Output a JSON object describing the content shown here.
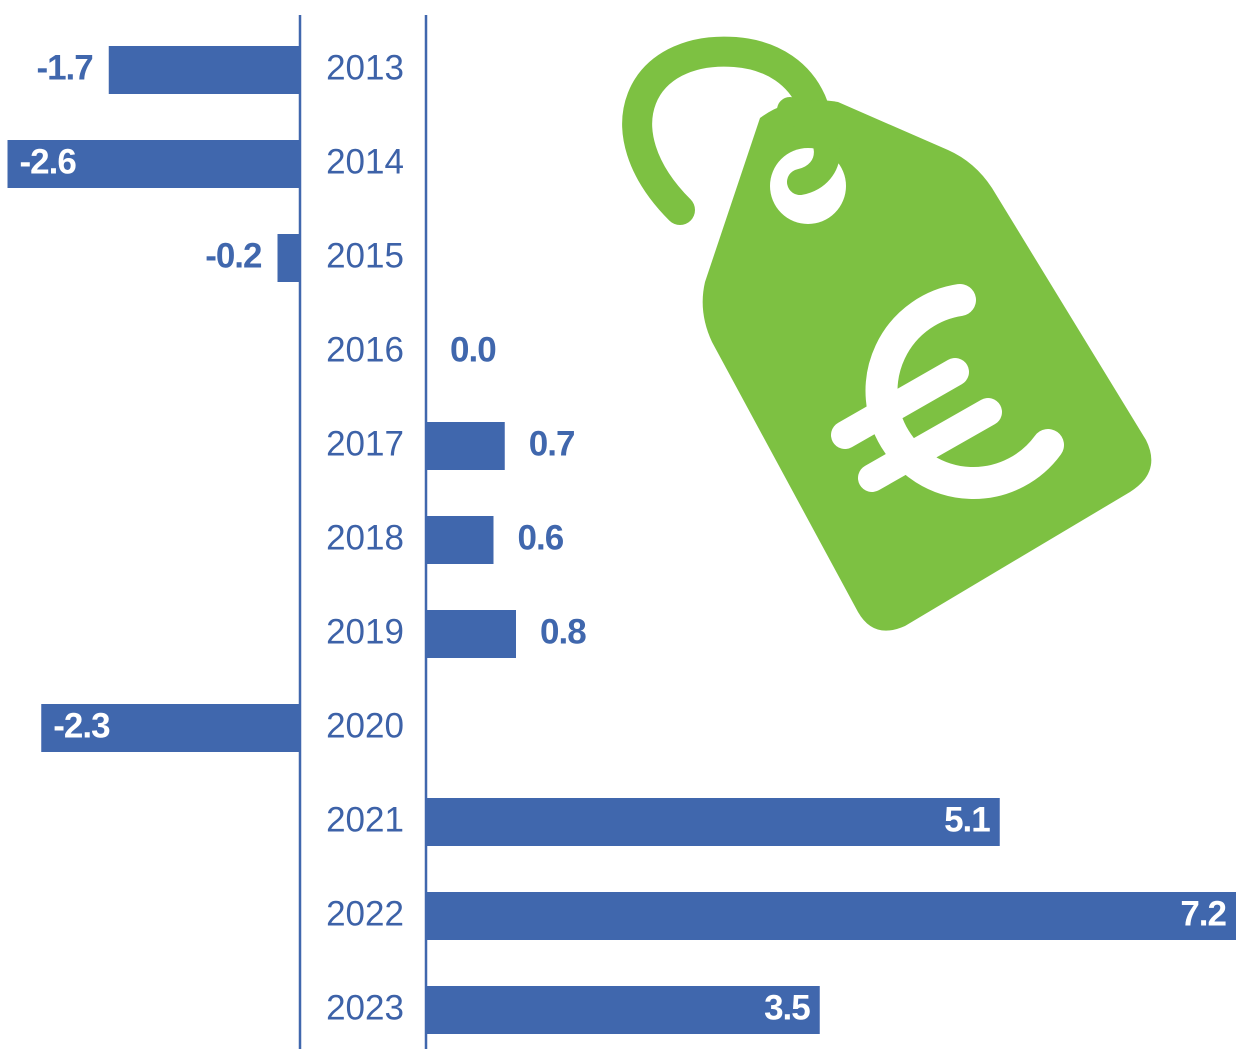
{
  "chart_data": {
    "type": "diverging-bar",
    "categories": [
      "2013",
      "2014",
      "2015",
      "2016",
      "2017",
      "2018",
      "2019",
      "2020",
      "2021",
      "2022",
      "2023"
    ],
    "values": [
      -1.7,
      -2.6,
      -0.2,
      0.0,
      0.7,
      0.6,
      0.8,
      -2.3,
      5.1,
      7.2,
      3.5
    ],
    "value_labels": [
      "-1.7",
      "-2.6",
      "-0.2",
      "0.0",
      "0.7",
      "0.6",
      "0.8",
      "-2.3",
      "5.1",
      "7.2",
      "3.5"
    ],
    "color": "#4067ad"
  }
}
